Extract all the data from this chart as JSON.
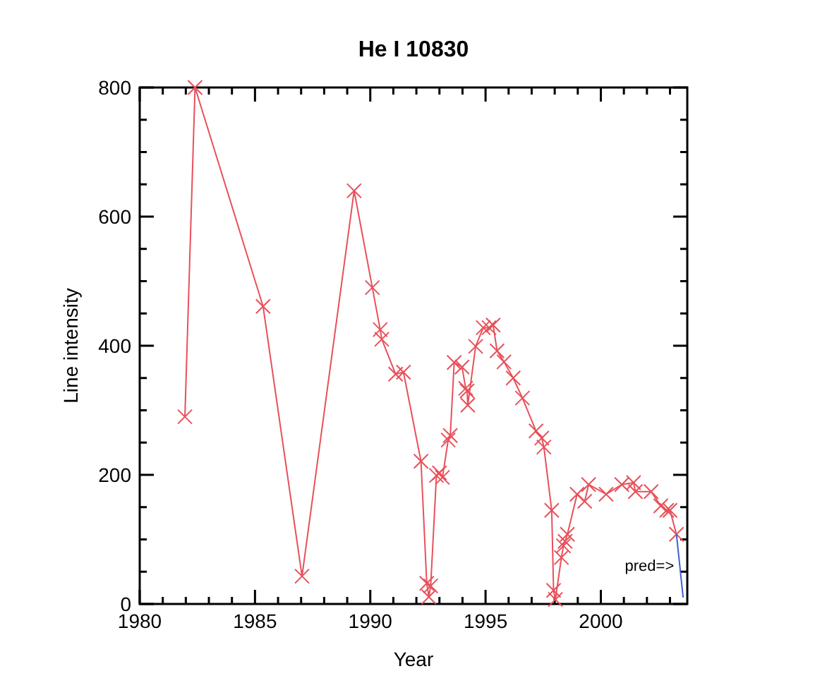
{
  "chart_data": {
    "type": "line",
    "title": "He I 10830",
    "xlabel": "Year",
    "ylabel": "Line intensity",
    "xlim": [
      1980,
      2003.75
    ],
    "ylim": [
      0,
      800
    ],
    "xticks": [
      1980,
      {
        "value": 1981,
        "label": null
      },
      {
        "value": 1982,
        "label": null
      },
      {
        "value": 1983,
        "label": null
      },
      {
        "value": 1984,
        "label": null
      },
      1985,
      {
        "value": 1986,
        "label": null
      },
      {
        "value": 1987,
        "label": null
      },
      {
        "value": 1988,
        "label": null
      },
      {
        "value": 1989,
        "label": null
      },
      1990,
      {
        "value": 1991,
        "label": null
      },
      {
        "value": 1992,
        "label": null
      },
      {
        "value": 1993,
        "label": null
      },
      {
        "value": 1994,
        "label": null
      },
      1995,
      {
        "value": 1996,
        "label": null
      },
      {
        "value": 1997,
        "label": null
      },
      {
        "value": 1998,
        "label": null
      },
      {
        "value": 1999,
        "label": null
      },
      2000,
      {
        "value": 2001,
        "label": null
      },
      {
        "value": 2002,
        "label": null
      },
      {
        "value": 2003,
        "label": null
      }
    ],
    "yticks": [
      0,
      {
        "value": 50,
        "label": null
      },
      {
        "value": 100,
        "label": null
      },
      {
        "value": 150,
        "label": null
      },
      200,
      {
        "value": 250,
        "label": null
      },
      {
        "value": 300,
        "label": null
      },
      {
        "value": 350,
        "label": null
      },
      400,
      {
        "value": 450,
        "label": null
      },
      {
        "value": 500,
        "label": null
      },
      {
        "value": 550,
        "label": null
      },
      600,
      {
        "value": 650,
        "label": null
      },
      {
        "value": 700,
        "label": null
      },
      {
        "value": 750,
        "label": null
      },
      800
    ],
    "grid": false,
    "annotations": [
      {
        "text": "pred=>",
        "x": 2003.3,
        "y": 60
      }
    ],
    "series": [
      {
        "color": "#e8505a",
        "marker": "cross",
        "x": [
          1981.96,
          1982.4,
          1985.35,
          1987.04,
          1989.3,
          1990.09,
          1990.43,
          1990.5,
          1991.1,
          1991.44,
          1992.2,
          1992.45,
          1992.54,
          1992.62,
          1992.87,
          1993.0,
          1993.13,
          1993.38,
          1993.47,
          1993.64,
          1993.98,
          1994.14,
          1994.2,
          1994.23,
          1994.57,
          1994.9,
          1995.15,
          1995.33,
          1995.5,
          1995.8,
          1996.2,
          1996.6,
          1997.19,
          1997.44,
          1997.53,
          1997.87,
          1997.95,
          1998.03,
          1998.29,
          1998.38,
          1998.45,
          1998.55,
          1998.97,
          1999.3,
          1999.47,
          2000.23,
          2000.91,
          2001.42,
          2001.5,
          2002.18,
          2002.6,
          2002.86,
          2003.0,
          2003.28
        ],
        "values": [
          290,
          800,
          461,
          43,
          640,
          490,
          425,
          410,
          356,
          359,
          221,
          32,
          11,
          28,
          199,
          203,
          196,
          254,
          261,
          374,
          367,
          334,
          330,
          308,
          399,
          428,
          428,
          432,
          392,
          375,
          350,
          319,
          268,
          257,
          243,
          145,
          21,
          7,
          72,
          90,
          97,
          108,
          170,
          159,
          185,
          170,
          185,
          188,
          174,
          174,
          152,
          145,
          145,
          108
        ]
      },
      {
        "color": "#4060d0",
        "marker": "none",
        "x": [
          2003.28,
          2003.57
        ],
        "values": [
          108,
          10
        ]
      }
    ]
  }
}
